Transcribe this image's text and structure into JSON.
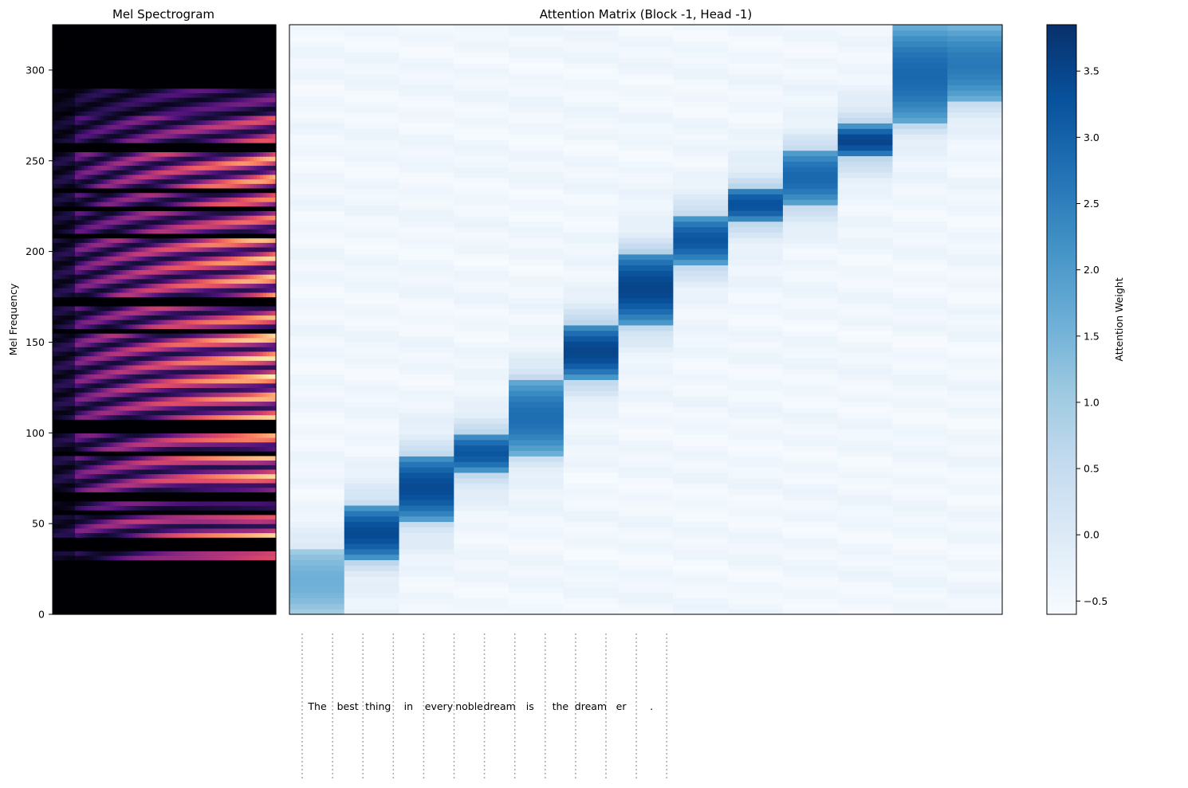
{
  "chart_data": [
    {
      "type": "heatmap",
      "title": "Mel Spectrogram",
      "ylabel": "Mel Frequency",
      "xlabel": "",
      "ylim": [
        0,
        325
      ],
      "yticks": [
        0,
        50,
        100,
        150,
        200,
        250,
        300
      ],
      "colormap": "magma",
      "harmonic_bands": [
        {
          "lo": 30,
          "hi": 35,
          "level": 0.6
        },
        {
          "lo": 41,
          "hi": 52,
          "level": 0.85
        },
        {
          "lo": 52,
          "hi": 62,
          "level": 0.6
        },
        {
          "lo": 68,
          "hi": 88,
          "level": 0.85
        },
        {
          "lo": 91,
          "hi": 100,
          "level": 0.8
        },
        {
          "lo": 108,
          "hi": 122,
          "level": 0.85
        },
        {
          "lo": 123,
          "hi": 157,
          "level": 0.9
        },
        {
          "lo": 158,
          "hi": 170,
          "level": 0.8
        },
        {
          "lo": 174,
          "hi": 208,
          "level": 0.85
        },
        {
          "lo": 210,
          "hi": 232,
          "level": 0.7
        },
        {
          "lo": 236,
          "hi": 256,
          "level": 0.8
        },
        {
          "lo": 258,
          "hi": 276,
          "level": 0.6
        },
        {
          "lo": 276,
          "hi": 290,
          "level": 0.35
        }
      ],
      "dark_gaps": [
        40,
        57,
        104,
        106,
        157,
        171,
        209,
        224,
        233,
        259
      ]
    },
    {
      "type": "heatmap",
      "title": "Attention Matrix (Block -1, Head -1)",
      "colorbar": {
        "label": "Attention Weight",
        "min": -0.6,
        "max": 3.85,
        "ticks": [
          -0.5,
          0.0,
          0.5,
          1.0,
          1.5,
          2.0,
          2.5,
          3.0,
          3.5
        ],
        "colormap": "Blues"
      },
      "columns": 13,
      "rows_range": [
        0,
        325
      ],
      "peaks": [
        {
          "col": 0,
          "lo": 0,
          "hi": 37,
          "peak": 1.6
        },
        {
          "col": 1,
          "lo": 30,
          "hi": 60,
          "peak": 3.4
        },
        {
          "col": 2,
          "lo": 52,
          "hi": 88,
          "peak": 3.4
        },
        {
          "col": 3,
          "lo": 78,
          "hi": 100,
          "peak": 3.2
        },
        {
          "col": 4,
          "lo": 88,
          "hi": 130,
          "peak": 2.8
        },
        {
          "col": 5,
          "lo": 130,
          "hi": 160,
          "peak": 3.5
        },
        {
          "col": 6,
          "lo": 160,
          "hi": 200,
          "peak": 3.5
        },
        {
          "col": 7,
          "lo": 193,
          "hi": 220,
          "peak": 3.2
        },
        {
          "col": 8,
          "lo": 216,
          "hi": 236,
          "peak": 3.3
        },
        {
          "col": 9,
          "lo": 225,
          "hi": 257,
          "peak": 2.9
        },
        {
          "col": 10,
          "lo": 252,
          "hi": 270,
          "peak": 3.5
        },
        {
          "col": 11,
          "lo": 270,
          "hi": 325,
          "peak": 2.9
        },
        {
          "col": 12,
          "lo": 282,
          "hi": 325,
          "peak": 2.6
        }
      ]
    },
    {
      "type": "table",
      "title": "",
      "token_labels": [
        "The",
        "best",
        "thing",
        "in",
        "every",
        "noble",
        "dream",
        "is",
        "the",
        "dream",
        "er",
        "."
      ],
      "token_boundary_count": 13
    }
  ]
}
